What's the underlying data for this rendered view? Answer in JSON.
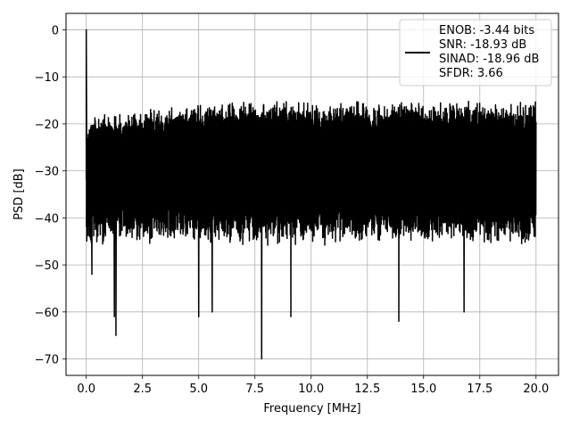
{
  "chart_data": {
    "type": "line",
    "title": "",
    "xlabel": "Frequency [MHz]",
    "ylabel": "PSD [dB]",
    "xlim": [
      -0.9,
      21.0
    ],
    "ylim": [
      -73.5,
      3.5
    ],
    "xticks": [
      0.0,
      2.5,
      5.0,
      7.5,
      10.0,
      12.5,
      15.0,
      17.5,
      20.0
    ],
    "xtick_labels": [
      "0.0",
      "2.5",
      "5.0",
      "7.5",
      "10.0",
      "12.5",
      "15.0",
      "17.5",
      "20.0"
    ],
    "yticks": [
      0,
      -10,
      -20,
      -30,
      -40,
      -50,
      -60,
      -70
    ],
    "ytick_labels": [
      "0",
      "−10",
      "−20",
      "−30",
      "−40",
      "−50",
      "−60",
      "−70"
    ],
    "grid": true,
    "legend_position": "top-right",
    "legend_lines": [
      "ENOB: -3.44 bits",
      "SNR: -18.93 dB",
      "SINAD: -18.96 dB",
      "SFDR: 3.66"
    ],
    "series": [
      {
        "color": "#000000",
        "x_range": [
          0.0,
          20.0
        ],
        "peak": {
          "x": 0.0,
          "y": 0.0
        },
        "noise_floor_band": [
          -45,
          -17
        ],
        "notable_dips": [
          {
            "x": 0.15,
            "y": -44
          },
          {
            "x": 0.25,
            "y": -52
          },
          {
            "x": 1.25,
            "y": -61
          },
          {
            "x": 1.32,
            "y": -65
          },
          {
            "x": 5.0,
            "y": -61
          },
          {
            "x": 5.6,
            "y": -60
          },
          {
            "x": 7.8,
            "y": -70
          },
          {
            "x": 9.1,
            "y": -61
          },
          {
            "x": 13.9,
            "y": -62
          },
          {
            "x": 16.8,
            "y": -60
          }
        ]
      }
    ]
  }
}
